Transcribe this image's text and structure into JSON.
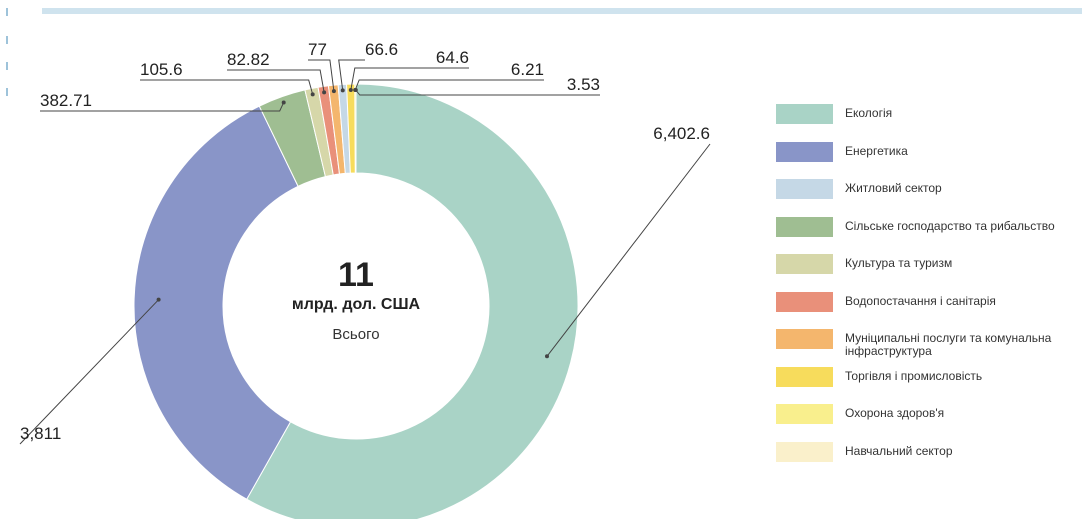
{
  "chart_data": {
    "type": "pie",
    "categories": [
      "Екологія",
      "Енергетика",
      "Сільське господарство та рибальство",
      "Культура та туризм",
      "Водопостачання і санітарія",
      "Муніципальні послуги та комунальна інфраструктура",
      "Житловий сектор",
      "Торгівля і промисловість",
      "Охорона здоров'я",
      "Навчальний сектор"
    ],
    "values": [
      6402.6,
      3811,
      382.71,
      105.6,
      82.82,
      77,
      66.6,
      64.6,
      6.21,
      3.53
    ],
    "value_labels": [
      "6,402.6",
      "3,811",
      "382.71",
      "105.6",
      "82.82",
      "77",
      "66.6",
      "64.6",
      "6.21",
      "3.53"
    ],
    "colors": [
      "#a9d3c6",
      "#8995c8",
      "#9fbe92",
      "#d6d7a9",
      "#e9907a",
      "#f4b66d",
      "#c5d8e6",
      "#f7dc5c",
      "#f9ef8d",
      "#faf0cb"
    ],
    "center": {
      "number": "11",
      "unit": "млрд. дол. США",
      "label": "Всього"
    },
    "legend_position": "right",
    "legend": [
      {
        "label": "Екологія",
        "color": "#a9d3c6"
      },
      {
        "label": "Енергетика",
        "color": "#8995c8"
      },
      {
        "label": "Житловий сектор",
        "color": "#c5d8e6"
      },
      {
        "label": "Сільське господарство та рибальство",
        "color": "#9fbe92"
      },
      {
        "label": "Культура та туризм",
        "color": "#d6d7a9"
      },
      {
        "label": "Водопостачання і санітарія",
        "color": "#e9907a"
      },
      {
        "label": "Муніципальні послуги та комунальна інфраструктура",
        "color": "#f4b66d"
      },
      {
        "label": "Торгівля і промисловість",
        "color": "#f7dc5c"
      },
      {
        "label": "Охорона здоров'я",
        "color": "#f9ef8d"
      },
      {
        "label": "Навчальний сектор",
        "color": "#faf0cb"
      }
    ]
  }
}
